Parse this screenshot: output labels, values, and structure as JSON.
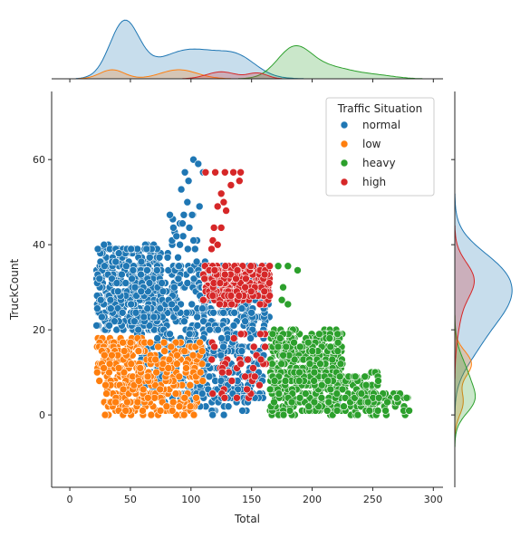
{
  "chart_data": {
    "type": "scatter",
    "kind": "jointplot-with-kde-marginals",
    "title": "",
    "xlabel": "Total",
    "ylabel": "TruckCount",
    "xlim": [
      -15,
      308
    ],
    "ylim": [
      -17,
      76
    ],
    "x_ticks": [
      0,
      50,
      100,
      150,
      200,
      250,
      300
    ],
    "y_ticks": [
      0,
      20,
      40,
      60
    ],
    "grid": false,
    "legend": {
      "title": "Traffic Situation",
      "placement": "top-right"
    },
    "series": [
      {
        "name": "normal",
        "color": "#1f77b4",
        "regions": [
          {
            "x": [
              22,
              75
            ],
            "y": [
              20,
              40
            ],
            "n": 420
          },
          {
            "x": [
              50,
              165
            ],
            "y": [
              20,
              35
            ],
            "n": 380
          },
          {
            "x": [
              55,
              160
            ],
            "y": [
              3,
              20
            ],
            "n": 360
          },
          {
            "x": [
              95,
              150
            ],
            "y": [
              0,
              8
            ],
            "n": 60
          },
          {
            "x": [
              80,
              115
            ],
            "y": [
              35,
              48
            ],
            "n": 25
          }
        ],
        "points": [
          [
            102,
            60
          ],
          [
            106,
            59
          ],
          [
            95,
            57
          ],
          [
            110,
            57
          ],
          [
            98,
            55
          ],
          [
            92,
            53
          ],
          [
            97,
            50
          ],
          [
            101,
            47
          ],
          [
            107,
            49
          ],
          [
            93,
            45
          ],
          [
            88,
            42
          ],
          [
            221,
            3
          ]
        ],
        "kde_x": [
          [
            45,
            0.78,
            12
          ],
          [
            100,
            0.42,
            28
          ],
          [
            140,
            0.2,
            15
          ]
        ],
        "kde_y": [
          [
            27,
            0.9,
            7
          ],
          [
            35,
            0.35,
            5
          ],
          [
            15,
            0.2,
            5
          ]
        ]
      },
      {
        "name": "low",
        "color": "#ff7f0e",
        "regions": [
          {
            "x": [
              22,
              60
            ],
            "y": [
              8,
              18
            ],
            "n": 130
          },
          {
            "x": [
              28,
              105
            ],
            "y": [
              0,
              8
            ],
            "n": 150
          },
          {
            "x": [
              55,
              110
            ],
            "y": [
              8,
              18
            ],
            "n": 100
          }
        ],
        "points": [],
        "kde_x": [
          [
            35,
            0.13,
            10
          ],
          [
            90,
            0.13,
            15
          ]
        ],
        "kde_y": [
          [
            12,
            0.3,
            3
          ],
          [
            3,
            0.15,
            3
          ]
        ]
      },
      {
        "name": "heavy",
        "color": "#2ca02c",
        "regions": [
          {
            "x": [
              165,
              225
            ],
            "y": [
              8,
              20
            ],
            "n": 280
          },
          {
            "x": [
              165,
              255
            ],
            "y": [
              0,
              10
            ],
            "n": 340
          },
          {
            "x": [
              235,
              280
            ],
            "y": [
              0,
              5
            ],
            "n": 50
          }
        ],
        "points": [
          [
            172,
            35
          ],
          [
            180,
            35
          ],
          [
            188,
            34
          ],
          [
            176,
            30
          ],
          [
            175,
            27
          ],
          [
            180,
            26
          ],
          [
            270,
            4
          ],
          [
            278,
            4
          ],
          [
            262,
            3
          ],
          [
            280,
            1
          ]
        ],
        "kde_x": [
          [
            185,
            0.42,
            14
          ],
          [
            215,
            0.16,
            20
          ],
          [
            255,
            0.04,
            15
          ]
        ],
        "kde_y": [
          [
            8,
            0.25,
            5
          ],
          [
            3,
            0.2,
            3
          ]
        ]
      },
      {
        "name": "high",
        "color": "#d62728",
        "regions": [
          {
            "x": [
              110,
              165
            ],
            "y": [
              26,
              35
            ],
            "n": 260
          },
          {
            "x": [
              115,
              162
            ],
            "y": [
              2,
              20
            ],
            "n": 40
          }
        ],
        "points": [
          [
            112,
            57
          ],
          [
            120,
            57
          ],
          [
            128,
            57
          ],
          [
            135,
            57
          ],
          [
            141,
            57
          ],
          [
            133,
            54
          ],
          [
            125,
            52
          ],
          [
            140,
            55
          ],
          [
            122,
            49
          ],
          [
            127,
            50
          ],
          [
            129,
            48
          ],
          [
            119,
            44
          ],
          [
            125,
            44
          ],
          [
            118,
            41
          ],
          [
            122,
            40
          ],
          [
            117,
            39
          ]
        ],
        "kde_x": [
          [
            125,
            0.1,
            12
          ],
          [
            155,
            0.08,
            8
          ]
        ],
        "kde_y": [
          [
            32,
            0.3,
            4
          ],
          [
            25,
            0.1,
            6
          ]
        ]
      }
    ]
  }
}
